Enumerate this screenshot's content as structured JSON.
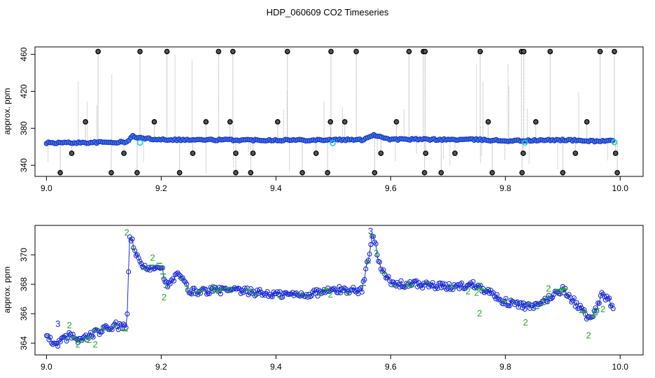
{
  "title": "HDP_060609  CO2 Timeseries",
  "colors": {
    "raw": "#000000",
    "spike_line": "#9a9a9a",
    "series": "#1a2bd6",
    "series_fill": "#3a7fd0",
    "flag": "#22cccc",
    "label2": "#22aa22",
    "label3": "#1a2bd6"
  },
  "chart_data": [
    {
      "type": "scatter",
      "title": "",
      "xlabel": "",
      "ylabel": "approx. ppm",
      "xlim": [
        8.98,
        10.04
      ],
      "ylim": [
        328,
        468
      ],
      "xticks": [
        "9.0",
        "9.2",
        "9.4",
        "9.6",
        "9.8",
        "10.0"
      ],
      "yticks": [
        "340",
        "380",
        "420",
        "460"
      ],
      "grid": false,
      "series": [
        {
          "role": "baseline",
          "x": [
            9.0,
            9.05,
            9.1,
            9.14,
            9.15,
            9.16,
            9.17,
            9.2,
            9.25,
            9.3,
            9.35,
            9.4,
            9.45,
            9.5,
            9.55,
            9.57,
            9.6,
            9.65,
            9.7,
            9.75,
            9.8,
            9.85,
            9.9,
            9.95,
            9.99
          ],
          "y": [
            364.3,
            364.4,
            364.8,
            365.0,
            371.5,
            370,
            369,
            368,
            367.5,
            367.5,
            367.3,
            367.3,
            367.3,
            367.6,
            367.5,
            373,
            368,
            368,
            367.8,
            367.8,
            366.5,
            366.8,
            367.5,
            366.2,
            366.5
          ]
        },
        {
          "role": "outliers_high",
          "x": [
            9.09,
            9.163,
            9.21,
            9.3,
            9.325,
            9.42,
            9.496,
            9.54,
            9.632,
            9.657,
            9.66,
            9.756,
            9.828,
            9.832,
            9.878,
            9.965,
            9.99
          ],
          "y": [
            463,
            463,
            463,
            463,
            463,
            463,
            463,
            463,
            463,
            463,
            463,
            463,
            463,
            463,
            463,
            463,
            463
          ]
        },
        {
          "role": "outliers_mid",
          "x": [
            9.068,
            9.188,
            9.278,
            9.32,
            9.403,
            9.495,
            9.52,
            9.61,
            9.77,
            9.853,
            9.942
          ],
          "y": [
            387,
            387,
            387,
            387,
            387,
            387,
            387,
            387,
            387,
            387,
            387
          ]
        },
        {
          "role": "outliers_low",
          "x": [
            9.044,
            9.135,
            9.255,
            9.33,
            9.36,
            9.47,
            9.583,
            9.661,
            9.712,
            9.831,
            9.922,
            9.992
          ],
          "y": [
            353,
            353,
            353,
            353,
            353,
            353,
            353,
            353,
            353,
            353,
            353,
            353
          ]
        },
        {
          "role": "outliers_bottom",
          "x": [
            9.024,
            9.113,
            9.158,
            9.232,
            9.33,
            9.356,
            9.446,
            9.49,
            9.572,
            9.659,
            9.688,
            9.777,
            9.829,
            9.9,
            9.995
          ],
          "y": [
            332,
            332,
            332,
            332,
            332,
            332,
            332,
            332,
            332,
            332,
            332,
            332,
            332,
            332,
            332
          ]
        },
        {
          "role": "flagged",
          "x": [
            9.163,
            9.499,
            9.834,
            9.99
          ],
          "y": [
            364.5,
            364,
            364.5,
            365
          ]
        }
      ]
    },
    {
      "type": "line",
      "title": "",
      "xlabel": "",
      "ylabel": "approx. ppm",
      "xlim": [
        8.98,
        10.04
      ],
      "ylim": [
        363.2,
        372.0
      ],
      "xticks": [
        "9.0",
        "9.2",
        "9.4",
        "9.6",
        "9.8",
        "10.0"
      ],
      "yticks": [
        "364",
        "366",
        "368",
        "370"
      ],
      "grid": false,
      "series": [
        {
          "role": "co2",
          "x": [
            9.0,
            9.02,
            9.04,
            9.06,
            9.08,
            9.1,
            9.12,
            9.14,
            9.145,
            9.15,
            9.16,
            9.17,
            9.2,
            9.21,
            9.23,
            9.25,
            9.3,
            9.35,
            9.4,
            9.45,
            9.5,
            9.55,
            9.57,
            9.58,
            9.6,
            9.65,
            9.7,
            9.75,
            9.8,
            9.85,
            9.9,
            9.95,
            9.97,
            9.99
          ],
          "y": [
            364.3,
            364.0,
            364.5,
            364.2,
            364.6,
            364.9,
            365.2,
            365.0,
            371.4,
            370.8,
            369.6,
            369.1,
            369.3,
            367.8,
            368.7,
            367.5,
            367.6,
            367.5,
            367.3,
            367.3,
            367.6,
            367.6,
            371.5,
            369.5,
            368.0,
            368.0,
            367.8,
            368.0,
            366.8,
            366.4,
            367.7,
            365.5,
            367.4,
            366.4
          ]
        }
      ],
      "annotations": [
        {
          "text": "3",
          "x": 9.02,
          "y": 365.3
        },
        {
          "text": "2",
          "x": 9.04,
          "y": 365.2
        },
        {
          "text": "2",
          "x": 9.055,
          "y": 363.9
        },
        {
          "text": "2",
          "x": 9.075,
          "y": 364.2
        },
        {
          "text": "2",
          "x": 9.085,
          "y": 363.9
        },
        {
          "text": "2",
          "x": 9.14,
          "y": 371.5
        },
        {
          "text": "2",
          "x": 9.185,
          "y": 369.8
        },
        {
          "text": "2",
          "x": 9.205,
          "y": 367.1
        },
        {
          "text": "2",
          "x": 9.245,
          "y": 367.7
        },
        {
          "text": "2",
          "x": 9.29,
          "y": 367.8
        },
        {
          "text": "2",
          "x": 9.32,
          "y": 367.6
        },
        {
          "text": "2",
          "x": 9.495,
          "y": 367.3
        },
        {
          "text": "3",
          "x": 9.565,
          "y": 371.6
        },
        {
          "text": "2",
          "x": 9.575,
          "y": 370.1
        },
        {
          "text": "2",
          "x": 9.63,
          "y": 368.0
        },
        {
          "text": "2",
          "x": 9.735,
          "y": 367.5
        },
        {
          "text": "2",
          "x": 9.75,
          "y": 367.4
        },
        {
          "text": "2",
          "x": 9.755,
          "y": 366.0
        },
        {
          "text": "2",
          "x": 9.835,
          "y": 365.4
        },
        {
          "text": "2",
          "x": 9.875,
          "y": 367.7
        },
        {
          "text": "2",
          "x": 9.945,
          "y": 364.5
        },
        {
          "text": "2",
          "x": 9.97,
          "y": 366.3
        }
      ]
    }
  ]
}
